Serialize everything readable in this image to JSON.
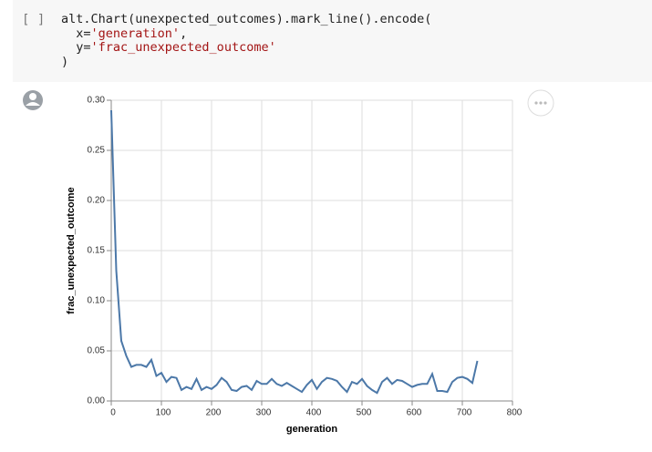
{
  "cell": {
    "prompt": "[ ]",
    "code_lines": [
      [
        "alt.Chart(unexpected_outcomes).mark_line().encode("
      ],
      [
        "  x=",
        "'generation'",
        ","
      ],
      [
        "  y=",
        "'frac_unexpected_outcome'"
      ],
      [
        ")"
      ]
    ]
  },
  "chart_data": {
    "type": "line",
    "x_label": "generation",
    "y_label": "frac_unexpected_outcome",
    "color": "#4c78a8",
    "grid": true,
    "x": [
      0,
      10,
      20,
      30,
      40,
      50,
      60,
      70,
      80,
      90,
      100,
      110,
      120,
      130,
      140,
      150,
      160,
      170,
      180,
      190,
      200,
      210,
      220,
      230,
      240,
      250,
      260,
      270,
      280,
      290,
      300,
      310,
      320,
      330,
      340,
      350,
      360,
      370,
      380,
      390,
      400,
      410,
      420,
      430,
      440,
      450,
      460,
      470,
      480,
      490,
      500,
      510,
      520,
      530,
      540,
      550,
      560,
      570,
      580,
      590,
      600,
      610,
      620,
      630,
      640,
      650,
      660,
      670,
      680,
      690,
      700,
      710,
      720,
      730
    ],
    "values": [
      0.29,
      0.13,
      0.06,
      0.045,
      0.034,
      0.036,
      0.036,
      0.034,
      0.041,
      0.025,
      0.028,
      0.019,
      0.024,
      0.023,
      0.011,
      0.014,
      0.012,
      0.022,
      0.011,
      0.014,
      0.012,
      0.016,
      0.023,
      0.019,
      0.011,
      0.01,
      0.014,
      0.015,
      0.011,
      0.02,
      0.017,
      0.017,
      0.022,
      0.017,
      0.015,
      0.018,
      0.015,
      0.012,
      0.009,
      0.016,
      0.021,
      0.012,
      0.019,
      0.023,
      0.022,
      0.02,
      0.014,
      0.009,
      0.019,
      0.017,
      0.022,
      0.015,
      0.011,
      0.008,
      0.019,
      0.023,
      0.017,
      0.021,
      0.02,
      0.017,
      0.014,
      0.016,
      0.017,
      0.017,
      0.027,
      0.01,
      0.01,
      0.009,
      0.019,
      0.023,
      0.024,
      0.022,
      0.018,
      0.04
    ],
    "xlim": [
      0,
      800
    ],
    "xticks": [
      0,
      100,
      200,
      300,
      400,
      500,
      600,
      700,
      800
    ],
    "ylim": [
      0,
      0.3
    ],
    "yticks": [
      {
        "value": 0,
        "label": "0.00"
      },
      {
        "value": 0.05,
        "label": "0.05"
      },
      {
        "value": 0.1,
        "label": "0.10"
      },
      {
        "value": 0.15,
        "label": "0.15"
      },
      {
        "value": 0.2,
        "label": "0.20"
      },
      {
        "value": 0.25,
        "label": "0.25"
      },
      {
        "value": 0.3,
        "label": "0.30"
      }
    ]
  }
}
